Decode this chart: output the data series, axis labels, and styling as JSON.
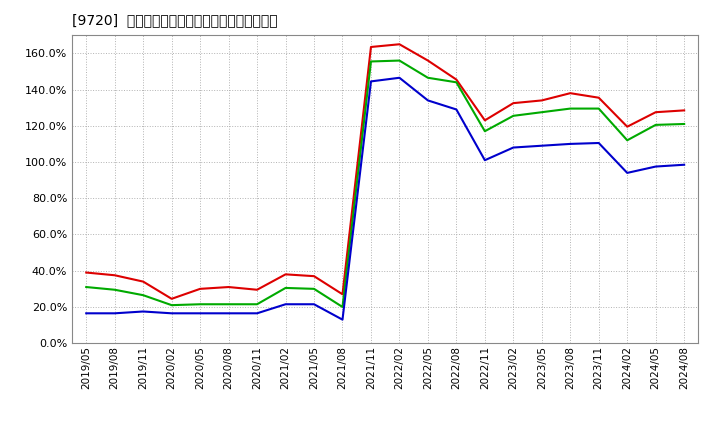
{
  "title": "[9720]  流動比率、当座比率、現預金比率の推移",
  "background_color": "#ffffff",
  "plot_bg_color": "#ffffff",
  "grid_color": "#aaaaaa",
  "ylim": [
    0.0,
    1.7
  ],
  "yticks": [
    0.0,
    0.2,
    0.4,
    0.6,
    0.8,
    1.0,
    1.2,
    1.4,
    1.6
  ],
  "series": {
    "流動比率": {
      "color": "#dd0000",
      "data": [
        0.39,
        0.375,
        0.34,
        0.245,
        0.3,
        0.31,
        0.295,
        0.38,
        0.37,
        0.27,
        1.635,
        1.65,
        1.56,
        1.455,
        1.23,
        1.325,
        1.34,
        1.38,
        1.355,
        1.195,
        1.275,
        1.285
      ]
    },
    "当座比率": {
      "color": "#00aa00",
      "data": [
        0.31,
        0.295,
        0.265,
        0.21,
        0.215,
        0.215,
        0.215,
        0.305,
        0.3,
        0.2,
        1.555,
        1.56,
        1.465,
        1.44,
        1.17,
        1.255,
        1.275,
        1.295,
        1.295,
        1.12,
        1.205,
        1.21
      ]
    },
    "現預金比率": {
      "color": "#0000cc",
      "data": [
        0.165,
        0.165,
        0.175,
        0.165,
        0.165,
        0.165,
        0.165,
        0.215,
        0.215,
        0.13,
        1.445,
        1.465,
        1.34,
        1.29,
        1.01,
        1.08,
        1.09,
        1.1,
        1.105,
        0.94,
        0.975,
        0.985
      ]
    }
  },
  "legend_order": [
    "流動比率",
    "当座比率",
    "現預金比率"
  ],
  "xtick_labels": [
    "2019/05",
    "2019/08",
    "2019/11",
    "2020/02",
    "2020/05",
    "2020/08",
    "2020/11",
    "2021/02",
    "2021/05",
    "2021/08",
    "2021/11",
    "2022/02",
    "2022/05",
    "2022/08",
    "2022/11",
    "2023/02",
    "2023/05",
    "2023/08",
    "2023/11",
    "2024/02",
    "2024/05",
    "2024/08"
  ]
}
